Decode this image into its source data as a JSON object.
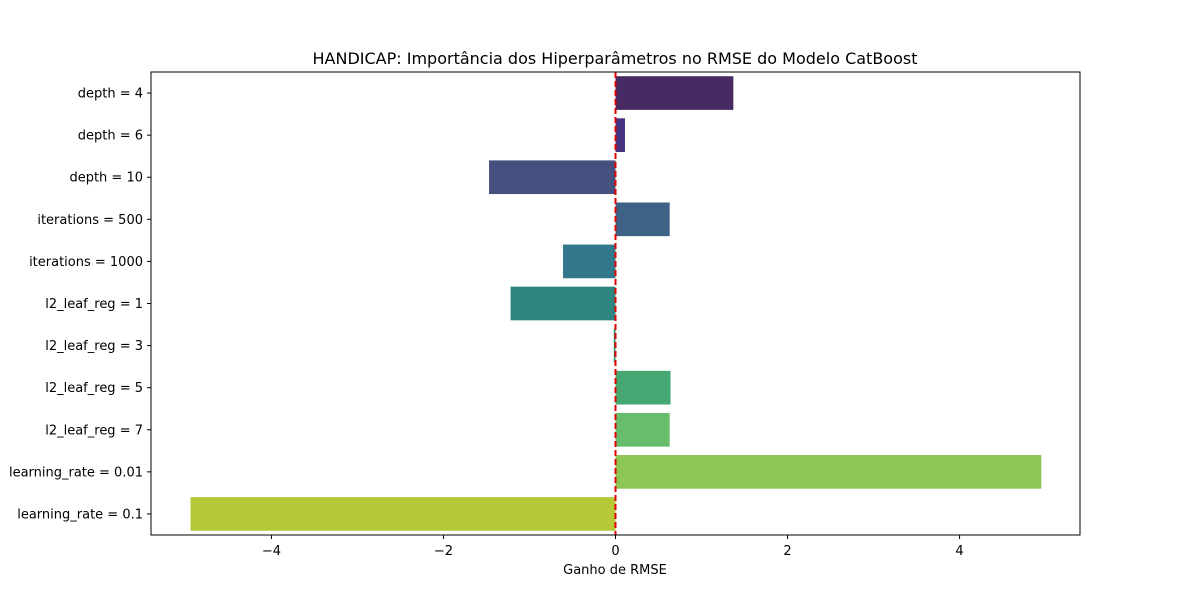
{
  "chart_data": {
    "type": "bar",
    "orientation": "horizontal",
    "title": "HANDICAP: Importância dos Hiperparâmetros no RMSE do Modelo CatBoost",
    "xlabel": "Ganho de RMSE",
    "ylabel": "",
    "xlim": [
      -5.4,
      5.4
    ],
    "xticks": [
      -4,
      -2,
      0,
      2,
      4
    ],
    "xtick_labels": [
      "−4",
      "−2",
      "0",
      "2",
      "4"
    ],
    "reference_line": {
      "x": 0,
      "style": "dashed",
      "color": "#e00000"
    },
    "categories": [
      "depth = 4",
      "depth = 6",
      "depth = 10",
      "iterations = 500",
      "iterations = 1000",
      "l2_leaf_reg = 1",
      "l2_leaf_reg = 3",
      "l2_leaf_reg = 5",
      "l2_leaf_reg = 7",
      "learning_rate = 0.01",
      "learning_rate = 0.1"
    ],
    "values": [
      1.37,
      0.11,
      -1.47,
      0.63,
      -0.61,
      -1.22,
      -0.02,
      0.64,
      0.63,
      4.95,
      -4.94
    ],
    "colors": [
      "#482a63",
      "#46327e",
      "#46507f",
      "#3d6286",
      "#32778a",
      "#2d8480",
      "#2a8e75",
      "#45a872",
      "#67bd6b",
      "#8cc655",
      "#b6c838"
    ],
    "grid": false,
    "legend": "none"
  }
}
